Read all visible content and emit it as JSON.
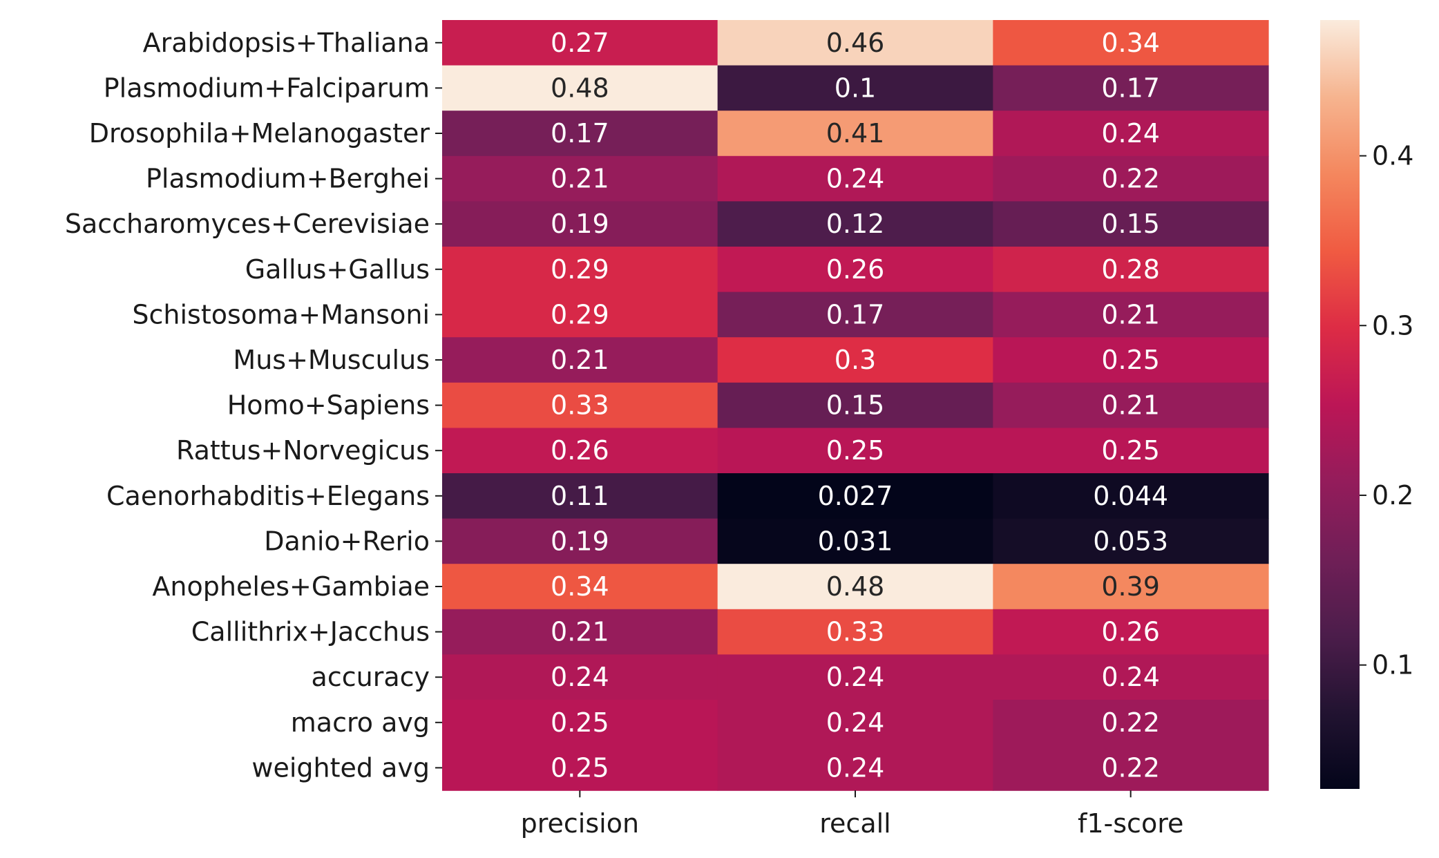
{
  "chart_data": {
    "type": "heatmap",
    "title": "",
    "xlabel": "",
    "ylabel": "",
    "columns": [
      "precision",
      "recall",
      "f1-score"
    ],
    "rows": [
      "Arabidopsis+Thaliana",
      "Plasmodium+Falciparum",
      "Drosophila+Melanogaster",
      "Plasmodium+Berghei",
      "Saccharomyces+Cerevisiae",
      "Gallus+Gallus",
      "Schistosoma+Mansoni",
      "Mus+Musculus",
      "Homo+Sapiens",
      "Rattus+Norvegicus",
      "Caenorhabditis+Elegans",
      "Danio+Rerio",
      "Anopheles+Gambiae",
      "Callithrix+Jacchus",
      "accuracy",
      "macro avg",
      "weighted avg"
    ],
    "values": [
      [
        0.27,
        0.46,
        0.34
      ],
      [
        0.48,
        0.1,
        0.17
      ],
      [
        0.17,
        0.41,
        0.24
      ],
      [
        0.21,
        0.24,
        0.22
      ],
      [
        0.19,
        0.12,
        0.15
      ],
      [
        0.29,
        0.26,
        0.28
      ],
      [
        0.29,
        0.17,
        0.21
      ],
      [
        0.21,
        0.3,
        0.25
      ],
      [
        0.33,
        0.15,
        0.21
      ],
      [
        0.26,
        0.25,
        0.25
      ],
      [
        0.11,
        0.027,
        0.044
      ],
      [
        0.19,
        0.031,
        0.053
      ],
      [
        0.34,
        0.48,
        0.39
      ],
      [
        0.21,
        0.33,
        0.26
      ],
      [
        0.24,
        0.24,
        0.24
      ],
      [
        0.25,
        0.24,
        0.22
      ],
      [
        0.25,
        0.24,
        0.22
      ]
    ],
    "cell_labels": [
      [
        "0.27",
        "0.46",
        "0.34"
      ],
      [
        "0.48",
        "0.1",
        "0.17"
      ],
      [
        "0.17",
        "0.41",
        "0.24"
      ],
      [
        "0.21",
        "0.24",
        "0.22"
      ],
      [
        "0.19",
        "0.12",
        "0.15"
      ],
      [
        "0.29",
        "0.26",
        "0.28"
      ],
      [
        "0.29",
        "0.17",
        "0.21"
      ],
      [
        "0.21",
        "0.3",
        "0.25"
      ],
      [
        "0.33",
        "0.15",
        "0.21"
      ],
      [
        "0.26",
        "0.25",
        "0.25"
      ],
      [
        "0.11",
        "0.027",
        "0.044"
      ],
      [
        "0.19",
        "0.031",
        "0.053"
      ],
      [
        "0.34",
        "0.48",
        "0.39"
      ],
      [
        "0.21",
        "0.33",
        "0.26"
      ],
      [
        "0.24",
        "0.24",
        "0.24"
      ],
      [
        "0.25",
        "0.24",
        "0.22"
      ],
      [
        "0.25",
        "0.24",
        "0.22"
      ]
    ],
    "colormap": "rocket",
    "vmin": 0.027,
    "vmax": 0.48,
    "colorbar": {
      "ticks": [
        0.1,
        0.2,
        0.3,
        0.4
      ],
      "tick_labels": [
        "0.1",
        "0.2",
        "0.3",
        "0.4"
      ],
      "placement": "right"
    },
    "colormap_stops": [
      [
        0.0,
        "#03051a"
      ],
      [
        0.1,
        "#221331"
      ],
      [
        0.2,
        "#4c1d4b"
      ],
      [
        0.3,
        "#701f57"
      ],
      [
        0.4,
        "#941c5b"
      ],
      [
        0.5,
        "#bc1656"
      ],
      [
        0.6,
        "#dd2c45"
      ],
      [
        0.7,
        "#f05b42"
      ],
      [
        0.8,
        "#f4875e"
      ],
      [
        0.9,
        "#f6b48f"
      ],
      [
        1.0,
        "#faebdd"
      ]
    ],
    "text_colors": {
      "light": "#ffffff",
      "dark": "#262626"
    }
  }
}
